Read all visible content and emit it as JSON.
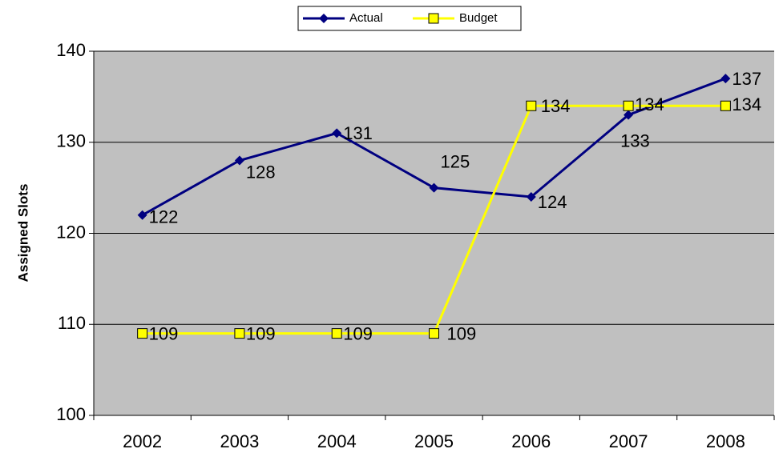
{
  "chart_data": {
    "type": "line",
    "categories": [
      "2002",
      "2003",
      "2004",
      "2005",
      "2006",
      "2007",
      "2008"
    ],
    "series": [
      {
        "name": "Actual",
        "color": "#000080",
        "values": [
          122,
          128,
          131,
          125,
          124,
          133,
          137
        ]
      },
      {
        "name": "Budget",
        "color": "#ffff00",
        "values": [
          109,
          109,
          109,
          109,
          134,
          134,
          134
        ]
      }
    ],
    "ylabel": "Assigned Slots",
    "ylim": [
      100,
      140
    ],
    "yticks": [
      100,
      110,
      120,
      130,
      140
    ],
    "grid": true,
    "legend": "top"
  }
}
